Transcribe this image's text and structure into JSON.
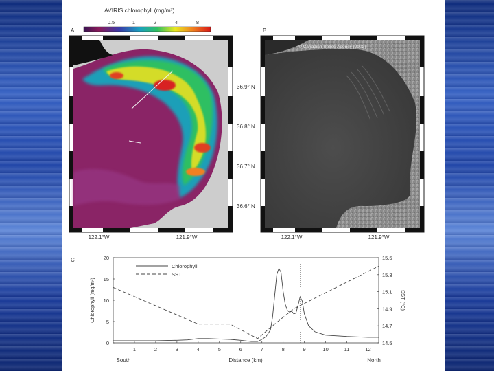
{
  "figure": {
    "panelA": {
      "letter": "A",
      "colorbar_title": "AVIRIS chlorophyll (mg/m³)",
      "colorbar_ticks": [
        "0.5",
        "1",
        "2",
        "4",
        "8"
      ],
      "lon_labels": [
        "122.1°W",
        "121.9°W"
      ]
    },
    "panelB": {
      "letter": "B",
      "credit": "© Canadian Space Agency (2002)",
      "lon_labels": [
        "122.1°W",
        "121.9°W"
      ]
    },
    "lat_labels": [
      "36.9° N",
      "36.8° N",
      "36.7° N",
      "36.6° N"
    ],
    "panelC": {
      "letter": "C",
      "south_label": "South",
      "north_label": "North"
    }
  },
  "chart_data": {
    "type": "line",
    "xlabel": "Distance (km)",
    "ylabel": "Chlorophyll (mg/m³)",
    "y2label": "SST (°C)",
    "xlim": [
      0,
      12.5
    ],
    "ylim": [
      0,
      20
    ],
    "y2lim": [
      14.5,
      15.5
    ],
    "x_ticks": [
      1,
      2,
      3,
      4,
      5,
      6,
      7,
      8,
      9,
      10,
      11,
      12
    ],
    "y_ticks": [
      0,
      5,
      10,
      15,
      20
    ],
    "y2_ticks": [
      "14.5",
      "14.7",
      "14.9",
      "15.1",
      "15.3",
      "15.5"
    ],
    "y2_tick_values": [
      14.5,
      14.7,
      14.9,
      15.1,
      15.3,
      15.5
    ],
    "vlines": [
      7.8,
      8.8
    ],
    "legend": "top-center",
    "series": [
      {
        "name": "Chlorophyll",
        "axis": "left",
        "style": "solid",
        "x": [
          0,
          1,
          2,
          3,
          3.5,
          4,
          4.5,
          5,
          5.5,
          6,
          6.5,
          6.8,
          7.0,
          7.2,
          7.4,
          7.5,
          7.6,
          7.7,
          7.8,
          7.9,
          8.0,
          8.1,
          8.2,
          8.3,
          8.4,
          8.5,
          8.6,
          8.7,
          8.8,
          8.9,
          9.0,
          9.2,
          9.5,
          10,
          11,
          12,
          12.5
        ],
        "y": [
          0.5,
          0.5,
          0.5,
          0.6,
          0.7,
          1.0,
          1.0,
          0.9,
          0.8,
          0.6,
          0.3,
          0.3,
          0.8,
          1.5,
          3.0,
          6.0,
          11.0,
          16.0,
          17.5,
          16.5,
          12.0,
          9.0,
          7.6,
          7.2,
          7.4,
          6.8,
          7.0,
          8.8,
          10.8,
          9.8,
          6.8,
          4.0,
          2.6,
          1.8,
          1.5,
          1.3,
          1.3
        ]
      },
      {
        "name": "SST",
        "axis": "right",
        "style": "dashed",
        "x": [
          0,
          4,
          5.5,
          6.8,
          7.5,
          8.5,
          12.5
        ],
        "y": [
          15.15,
          14.72,
          14.72,
          14.55,
          14.7,
          14.9,
          15.4
        ]
      }
    ]
  }
}
